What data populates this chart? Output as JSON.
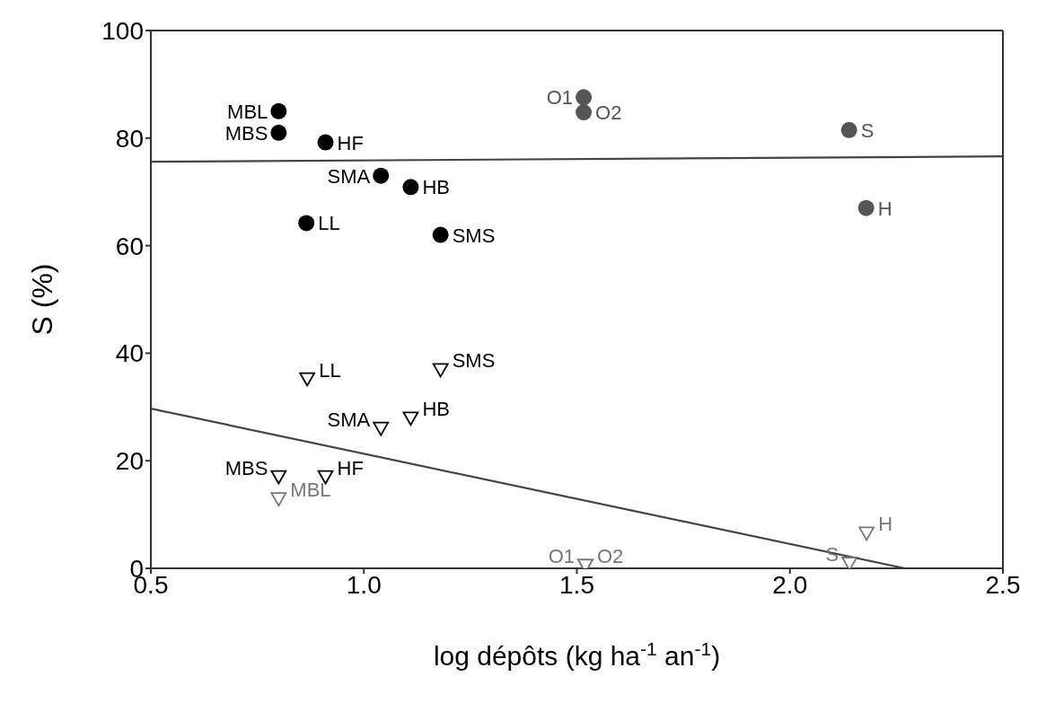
{
  "chart_data": {
    "type": "scatter",
    "xlabel": "log dépôts (kg ha$^{-1}$ an$^{-1}$)",
    "ylabel": "S (%)",
    "xlim": [
      0.5,
      2.5
    ],
    "xticks": [
      0.5,
      {
        "value": 1,
        "label": "1.0"
      },
      1.5,
      {
        "value": 2,
        "label": "2.0"
      },
      2.5
    ],
    "ylim": [
      0,
      100
    ],
    "yticks": [
      0,
      20,
      40,
      60,
      80,
      100
    ],
    "grid": false,
    "legend": false,
    "series": [
      {
        "marker": "circle",
        "color": "#000000",
        "x": [
          0.8,
          0.8,
          0.91,
          1.04,
          1.11,
          0.865,
          1.18
        ],
        "values": [
          85,
          81,
          79.2,
          73,
          70.9,
          64.2,
          62
        ],
        "value_labels": [
          "MBL",
          "MBS",
          "HF",
          "SMA",
          "HB",
          "LL",
          "SMS"
        ]
      },
      {
        "marker": "circle",
        "color": "#555555",
        "x": [
          1.516,
          1.516,
          2.139,
          2.179
        ],
        "values": [
          87.6,
          84.8,
          81.5,
          67
        ],
        "value_labels": [
          "O1",
          "O2",
          "S",
          "H"
        ]
      },
      {
        "marker": "triangle",
        "color": "#000000",
        "x": [
          0.867,
          1.18,
          1.04,
          1.11,
          0.8,
          0.91
        ],
        "values": [
          35.3,
          37,
          26.1,
          28,
          17.1,
          17.1
        ],
        "value_labels": [
          "LL",
          "SMS",
          "SMA",
          "HB",
          "MBS",
          "HF"
        ]
      },
      {
        "marker": "triangle",
        "color": "#777777",
        "x": [
          0.8,
          1.52,
          1.52,
          2.14,
          2.18
        ],
        "values": [
          13,
          0.6,
          0.6,
          1,
          6.6
        ],
        "value_labels": [
          "MBL",
          "O1",
          "O2",
          "S",
          "H"
        ]
      },
      {
        "type": "line",
        "line_style": "solid",
        "color": "#444444",
        "x": [
          0.5,
          2.5
        ],
        "values": [
          75.6,
          76.6
        ]
      },
      {
        "type": "line",
        "line_style": "solid",
        "color": "#444444",
        "x": [
          0.5,
          2.27
        ],
        "values": [
          29.7,
          0
        ]
      }
    ]
  }
}
